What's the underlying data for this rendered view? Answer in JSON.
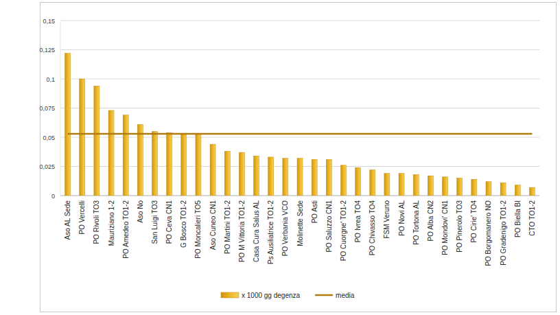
{
  "chart_data": {
    "type": "bar",
    "categories": [
      "Aso AL Sede",
      "PO Vercelli",
      "PO Rivoli TO3",
      "Mauriziano 1-2",
      "PO Amedeo TO1-2",
      "Aso No",
      "San Luigi TO3",
      "PO Ceva CN1",
      "G Bosco TO1-2",
      "PO Moncalieri TO5",
      "Aso Cuneo CN1",
      "PO Martini TO1-2",
      "PO M Vittoria TO1-2",
      "Casa Cura Salus AL",
      "Ps Ausiliatrice TO1-2",
      "PO Verbania VCO",
      "Molinette Sede",
      "PO Asti",
      "PO Saluzzo CN1",
      "PO Cuorgne' TO1-2",
      "PO Ivrea TO4",
      "PO Chivasso TO4",
      "FSM Veruno",
      "PO Novi AL",
      "PO Tortona AL",
      "PO Alba CN2",
      "PO Mondovi' CN1",
      "PO Pinerolo TO3",
      "PO Cirie' TO4",
      "PO Borgomanero NO",
      "PO Gradenigo TO1-2",
      "PO Biella BI",
      "CTO TO1-2"
    ],
    "series": [
      {
        "name": "x 1000 gg degenza",
        "type": "bar",
        "color": "#ebb323",
        "values": [
          0.122,
          0.1,
          0.094,
          0.073,
          0.069,
          0.061,
          0.055,
          0.054,
          0.053,
          0.053,
          0.044,
          0.038,
          0.037,
          0.034,
          0.033,
          0.032,
          0.032,
          0.031,
          0.031,
          0.026,
          0.024,
          0.022,
          0.019,
          0.019,
          0.018,
          0.017,
          0.016,
          0.015,
          0.014,
          0.012,
          0.011,
          0.009,
          0.007
        ]
      },
      {
        "name": "media",
        "type": "line",
        "color": "#b07c12",
        "values": [
          0.053,
          0.053,
          0.053,
          0.053,
          0.053,
          0.053,
          0.053,
          0.053,
          0.053,
          0.053,
          0.053,
          0.053,
          0.053,
          0.053,
          0.053,
          0.053,
          0.053,
          0.053,
          0.053,
          0.053,
          0.053,
          0.053,
          0.053,
          0.053,
          0.053,
          0.053,
          0.053,
          0.053,
          0.053,
          0.053,
          0.053,
          0.053,
          0.053
        ]
      }
    ],
    "ylim": [
      0,
      0.15
    ],
    "yticks": [
      0,
      {
        "value": 0.025,
        "label": "0,025"
      },
      {
        "value": 0.05,
        "label": "0,05"
      },
      {
        "value": 0.075,
        "label": "0,075"
      },
      {
        "value": 0.1,
        "label": "0,1"
      },
      {
        "value": 0.125,
        "label": "0,125"
      },
      {
        "value": 0.15,
        "label": "0,15"
      }
    ],
    "grid": true,
    "legend": "bottom"
  }
}
